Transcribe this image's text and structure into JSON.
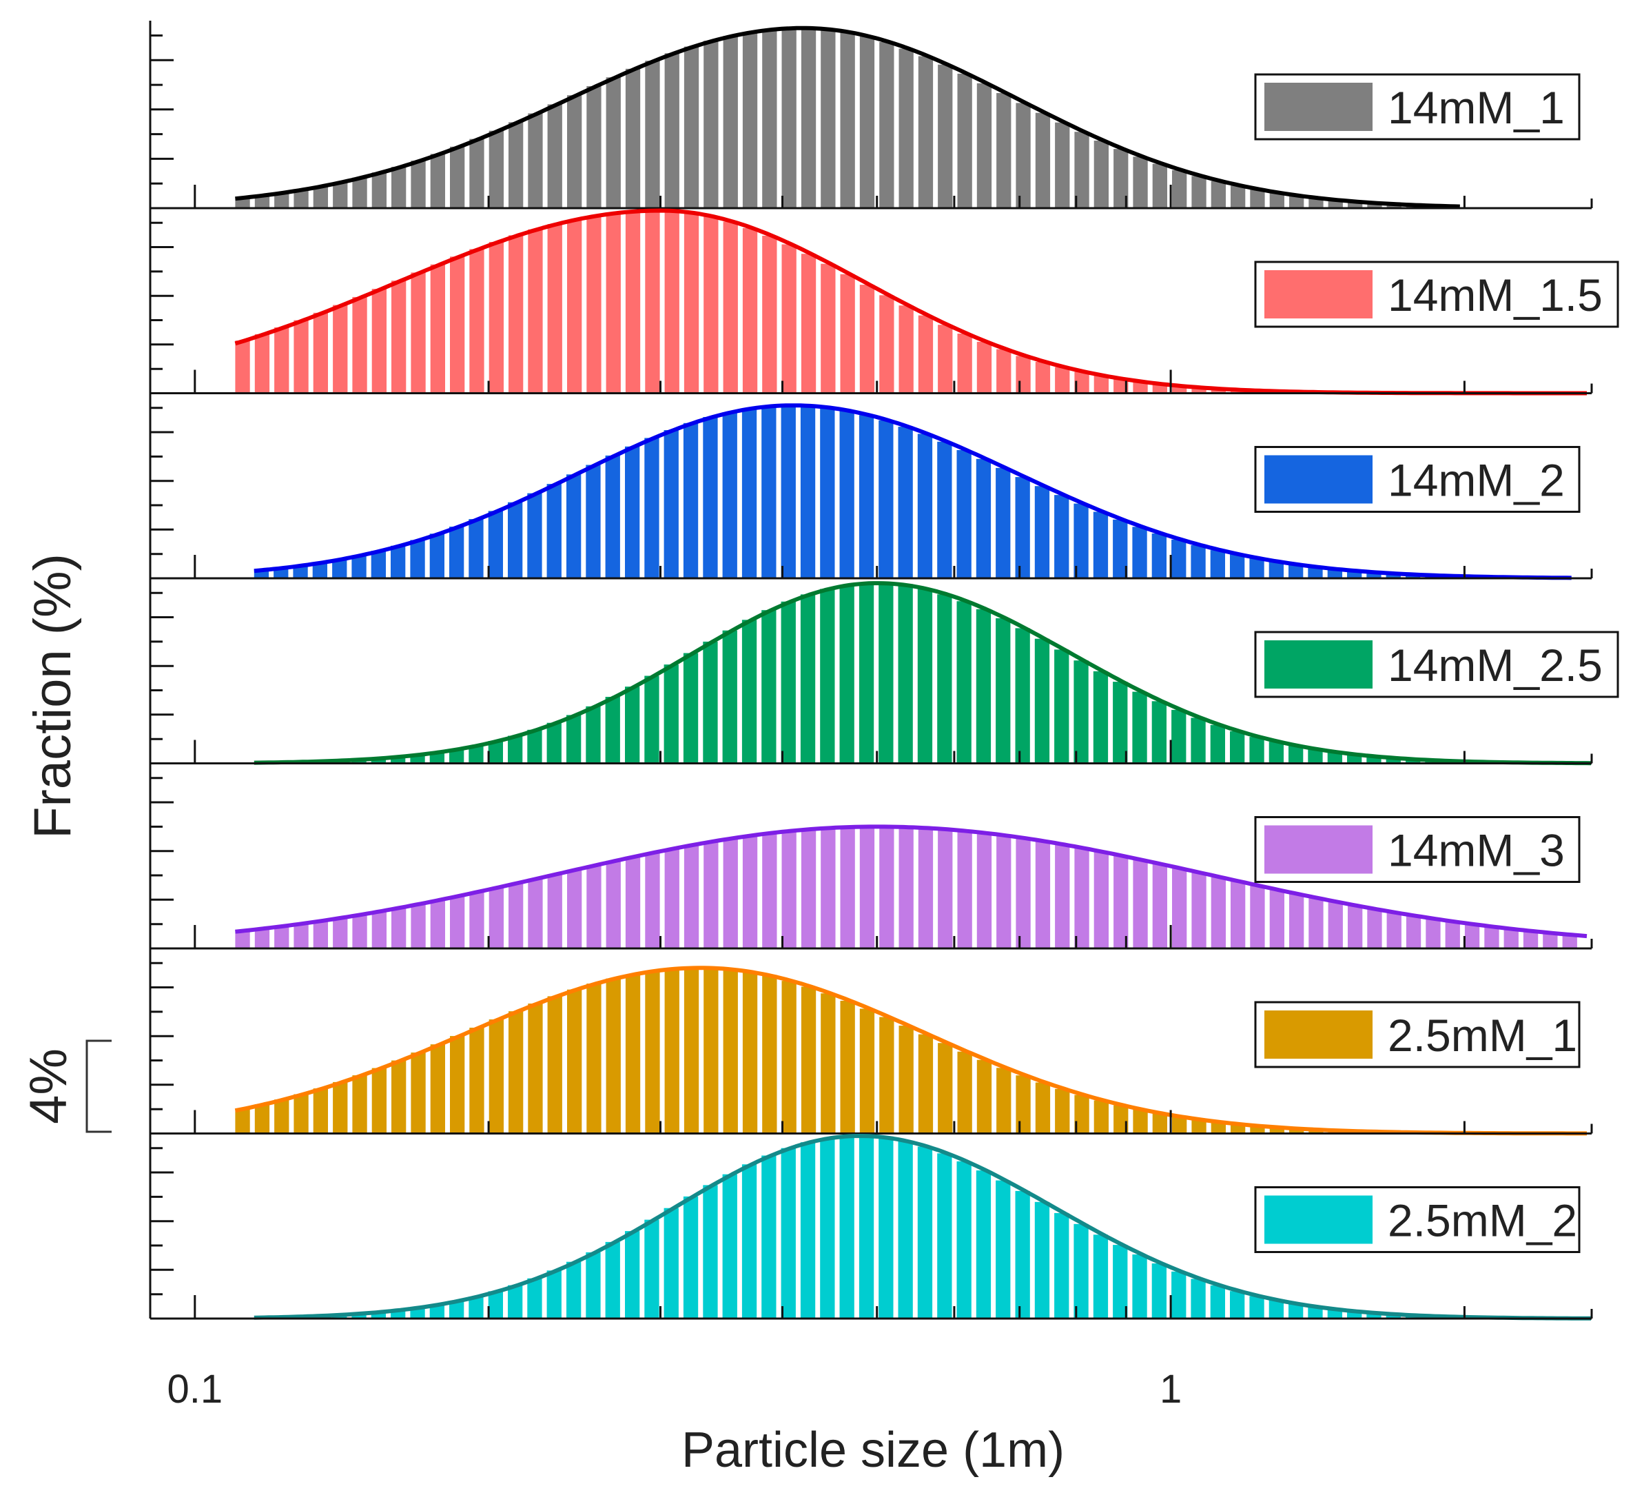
{
  "chart_data": {
    "type": "bar",
    "subtype": "stacked-histogram-with-fit",
    "xlabel": "Particle size (1m)",
    "ylabel": "Fraction (%)",
    "x_scale": "log",
    "xlim": [
      0.09,
      2.7
    ],
    "x_ticks": [
      {
        "value": 0.1,
        "label": "0.1"
      },
      {
        "value": 1,
        "label": "1"
      }
    ],
    "scale_bar": {
      "label": "4%",
      "value": 4
    },
    "panel_ymax": 7.6,
    "bin_log_width": 0.02,
    "series": [
      {
        "name": "14mM_1",
        "color": "#7f7f7f",
        "line_color": "#000000",
        "x_min": 0.11,
        "x_max": 2.0,
        "peak_x": 0.42,
        "peak_y": 7.3,
        "sigma_log_left": 0.24,
        "sigma_log_right": 0.22
      },
      {
        "name": "14mM_1.5",
        "color": "#ff6e6e",
        "line_color": "#ee0000",
        "x_min": 0.11,
        "x_max": 2.7,
        "peak_x": 0.3,
        "peak_y": 7.5,
        "sigma_log_left": 0.27,
        "sigma_log_right": 0.21
      },
      {
        "name": "14mM_2",
        "color": "#1565e0",
        "line_color": "#0000ee",
        "x_min": 0.115,
        "x_max": 2.6,
        "peak_x": 0.41,
        "peak_y": 7.1,
        "sigma_log_left": 0.22,
        "sigma_log_right": 0.23
      },
      {
        "name": "14mM_2.5",
        "color": "#00a564",
        "line_color": "#007a30",
        "x_min": 0.115,
        "x_max": 2.7,
        "peak_x": 0.5,
        "peak_y": 7.4,
        "sigma_log_left": 0.19,
        "sigma_log_right": 0.2
      },
      {
        "name": "14mM_3",
        "color": "#c27be6",
        "line_color": "#7d1fe6",
        "x_min": 0.11,
        "x_max": 2.7,
        "peak_x": 0.5,
        "peak_y": 5.0,
        "sigma_log_left": 0.33,
        "sigma_log_right": 0.34
      },
      {
        "name": "2.5mM_1",
        "color": "#d99a00",
        "line_color": "#ff7f00",
        "x_min": 0.11,
        "x_max": 2.7,
        "peak_x": 0.33,
        "peak_y": 6.8,
        "sigma_log_left": 0.24,
        "sigma_log_right": 0.23
      },
      {
        "name": "2.5mM_2",
        "color": "#00cdd0",
        "line_color": "#138a8a",
        "x_min": 0.115,
        "x_max": 2.7,
        "peak_x": 0.48,
        "peak_y": 7.5,
        "sigma_log_left": 0.19,
        "sigma_log_right": 0.2
      }
    ]
  }
}
